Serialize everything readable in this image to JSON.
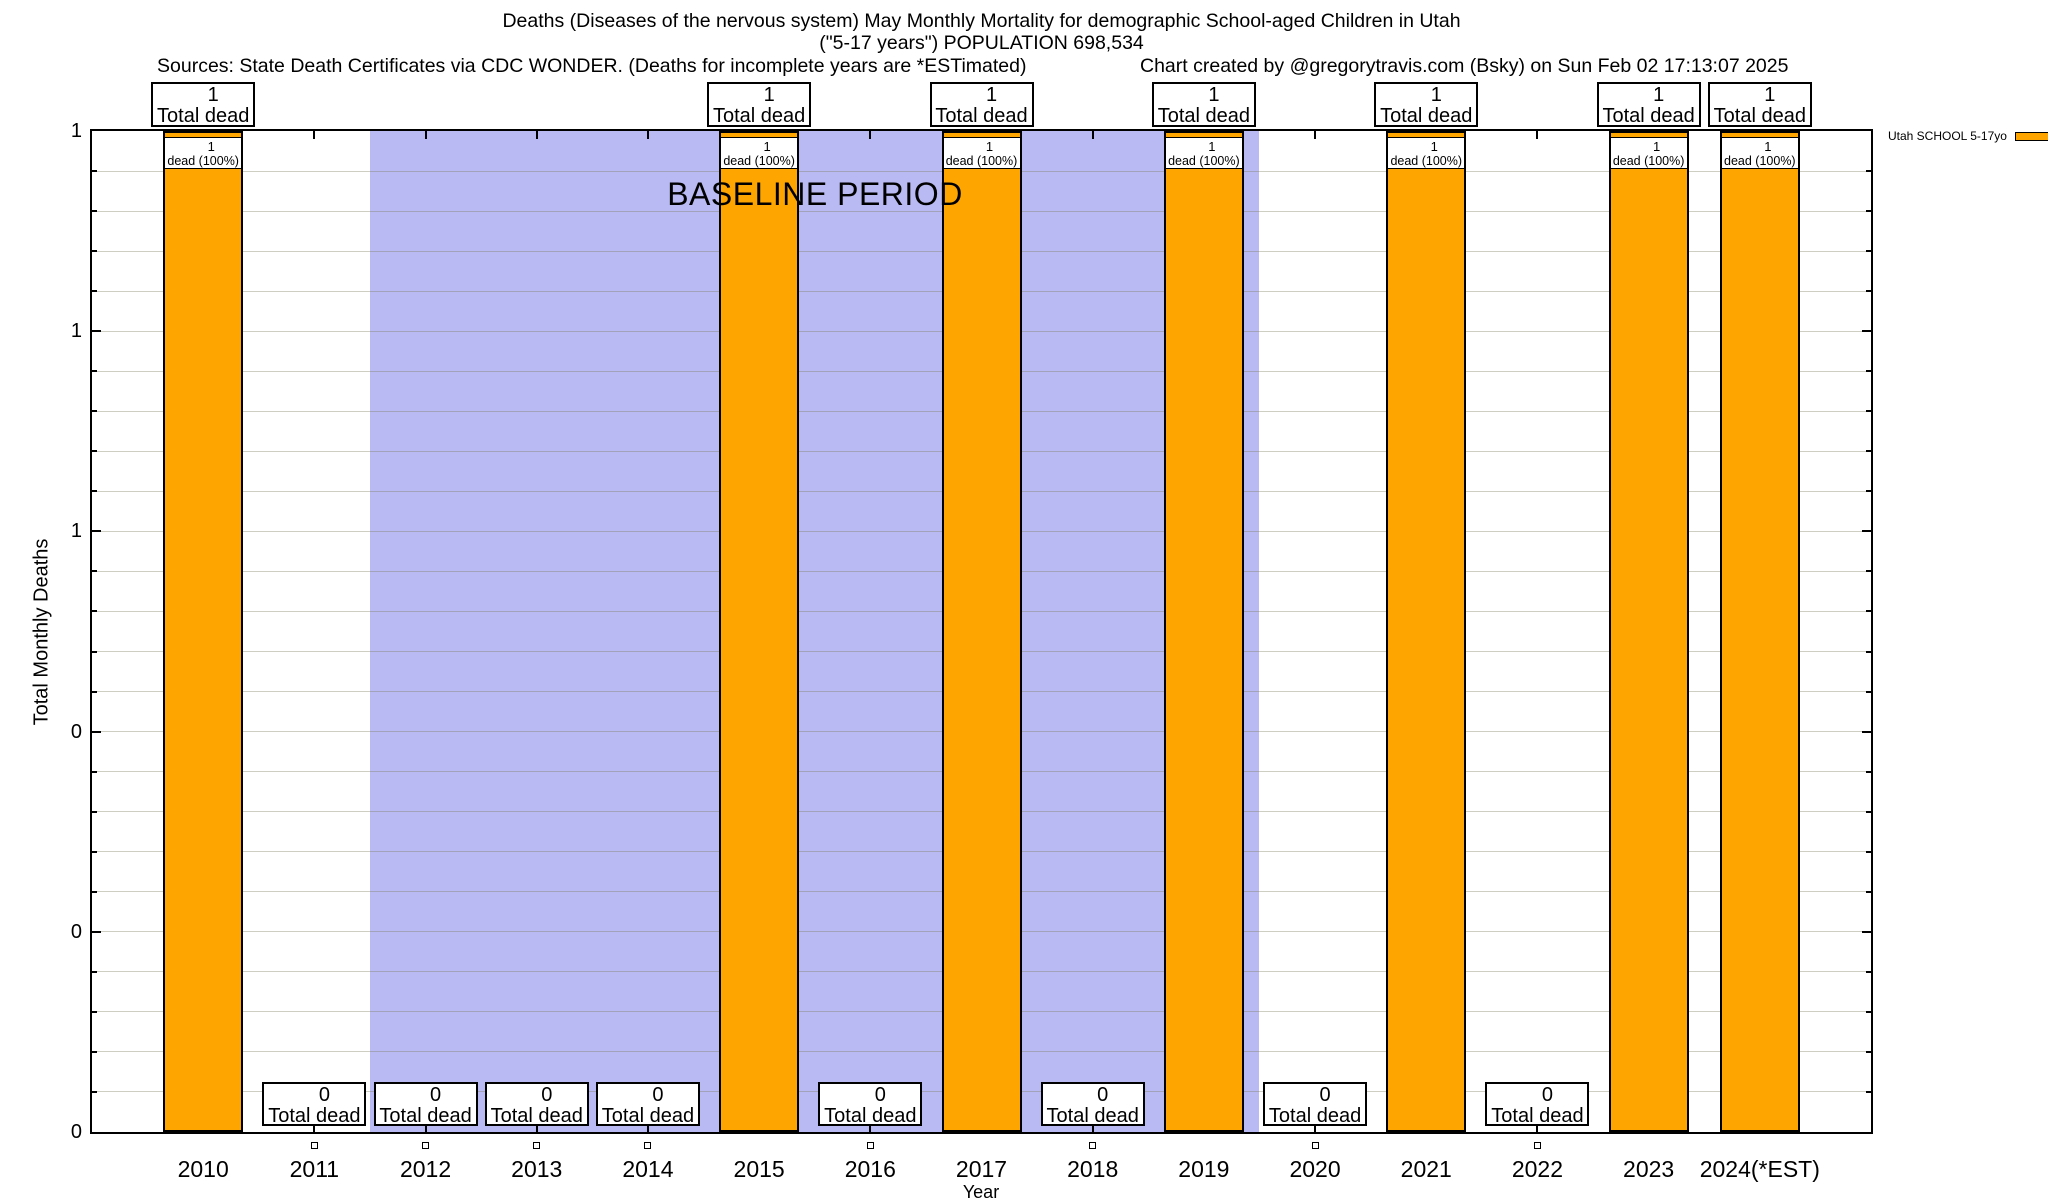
{
  "header": {
    "title_line1": "Deaths (Diseases of the nervous system) May Monthly Mortality for demographic School-aged Children in Utah",
    "title_line2": "(\"5-17 years\") POPULATION 698,534",
    "sources_note": "Sources: State Death Certificates via CDC WONDER. (Deaths for incomplete years are *ESTimated)",
    "credit": "Chart created by @gregorytravis.com (Bsky) on Sun Feb 02 17:13:07 2025"
  },
  "legend": {
    "label": "Utah SCHOOL 5-17yo",
    "swatch_color": "#FFA500"
  },
  "chart_data": {
    "type": "bar",
    "title": "Deaths (Diseases of the nervous system) May Monthly Mortality for demographic School-aged Children in Utah (\"5-17 years\") POPULATION 698,534",
    "xlabel": "Year",
    "ylabel": "Total Monthly Deaths",
    "categories": [
      "2010",
      "2011",
      "2012",
      "2013",
      "2014",
      "2015",
      "2016",
      "2017",
      "2018",
      "2019",
      "2020",
      "2021",
      "2022",
      "2023",
      "2024(*EST)"
    ],
    "values": [
      1,
      0,
      0,
      0,
      0,
      1,
      0,
      1,
      0,
      1,
      0,
      1,
      0,
      1,
      1
    ],
    "bar_color": "#FFA500",
    "bar_border_color": "#000000",
    "ylim": [
      0,
      1
    ],
    "ytick_labels_bottom_to_top": [
      "0",
      "0",
      "0",
      "1",
      "1",
      "1"
    ],
    "major_tick_step": 0.2,
    "minor_gridlines_per_major": 5,
    "grid": "horizontal minor gridlines only, no vertical gridlines",
    "gridline_color": "rgba(125,125,95,0.38)",
    "legend_position": "top-right outside plot",
    "baseline_band": {
      "label": "BASELINE PERIOD",
      "x_start": 2011.5,
      "x_end": 2019.5,
      "color": "#B9B9F3"
    },
    "annotations": {
      "bar_top_box_line2": "Total dead",
      "in_bar_box_line2": "dead (100%)",
      "zero_box_line2": "Total dead"
    }
  }
}
